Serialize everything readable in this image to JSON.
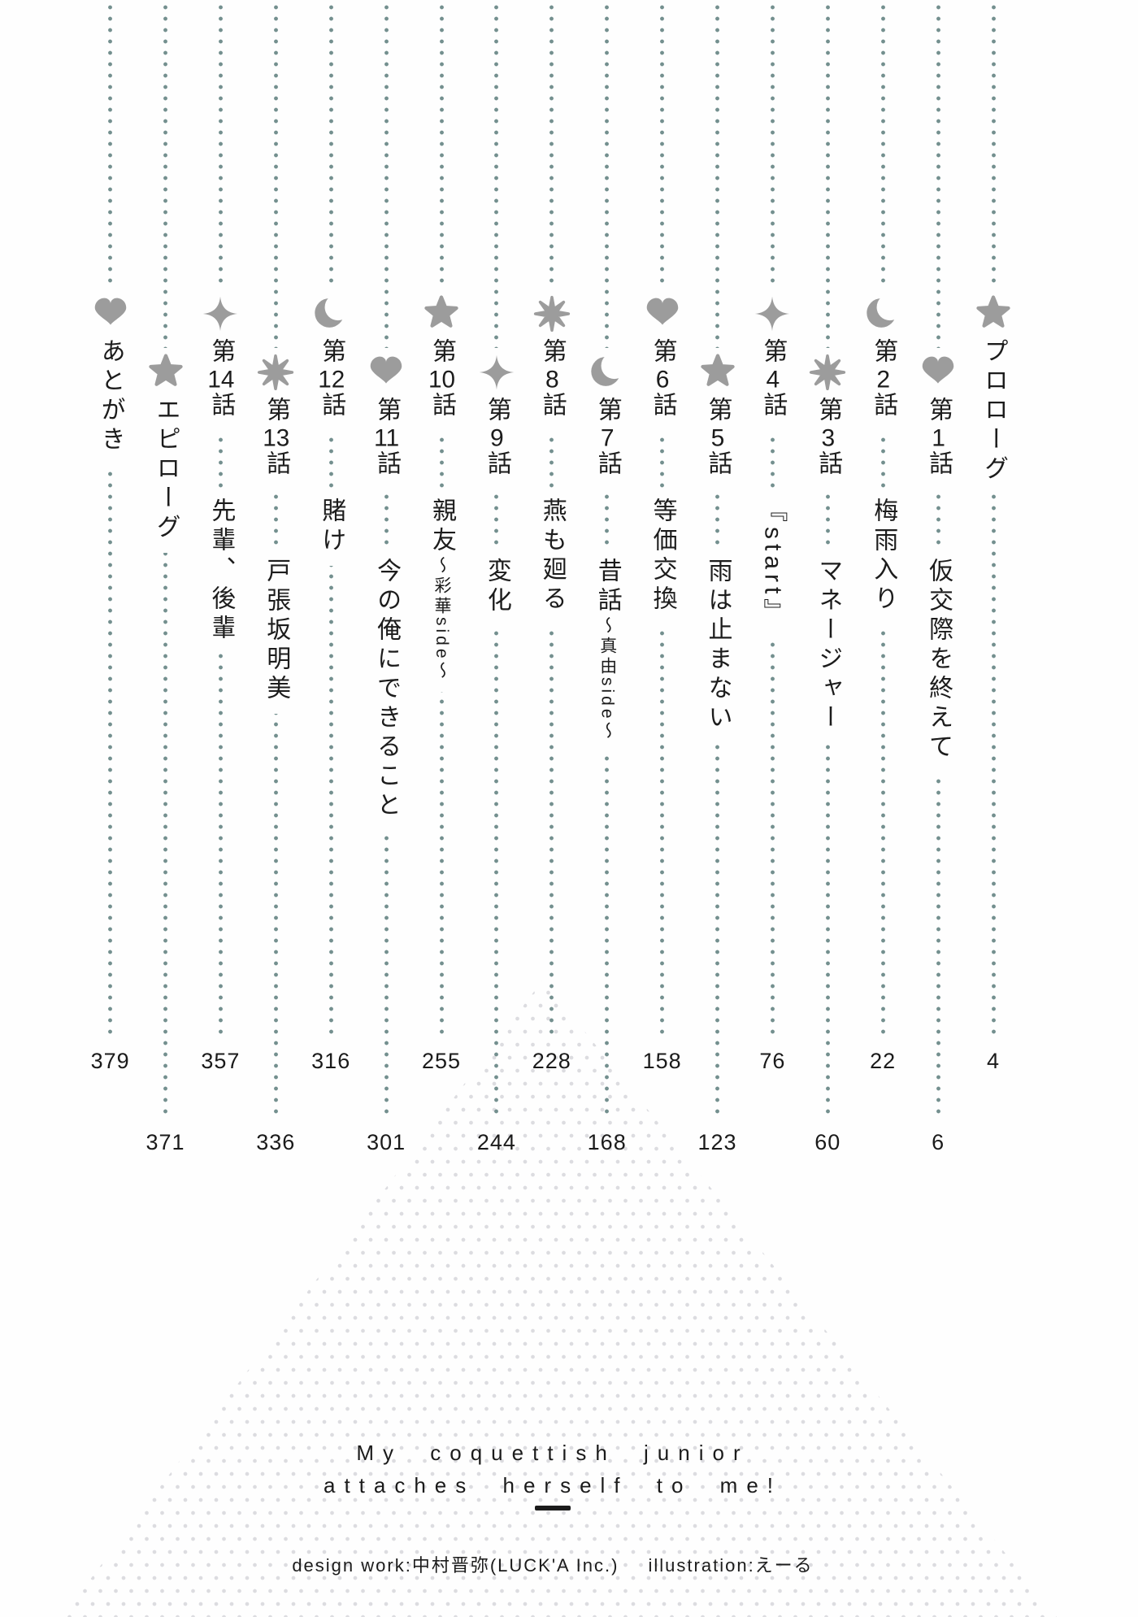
{
  "page": {
    "background_color": "#fefefe",
    "dot_line_color": "#74908f",
    "icon_color": "#9c9c9c",
    "text_color": "#1c1c1c",
    "triangle_dot_color": "#dcdce0"
  },
  "toc": {
    "items": [
      {
        "icon": "star",
        "label": "プロローグ",
        "title": "",
        "title_sub": "",
        "page": "4"
      },
      {
        "icon": "heart",
        "label": "第1話",
        "title": "仮交際を終えて",
        "title_sub": "",
        "page": "6"
      },
      {
        "icon": "moon",
        "label": "第2話",
        "title": "梅雨入り",
        "title_sub": "",
        "page": "22"
      },
      {
        "icon": "burst",
        "label": "第3話",
        "title": "マネージャー",
        "title_sub": "",
        "page": "60"
      },
      {
        "icon": "sparkle",
        "label": "第4話",
        "title": "『start』",
        "title_sub": "",
        "page": "76"
      },
      {
        "icon": "star",
        "label": "第5話",
        "title": "雨は止まない",
        "title_sub": "",
        "page": "123"
      },
      {
        "icon": "heart",
        "label": "第6話",
        "title": "等価交換",
        "title_sub": "",
        "page": "158"
      },
      {
        "icon": "moon",
        "label": "第7話",
        "title": "昔話",
        "title_sub": "〜真由side〜",
        "page": "168"
      },
      {
        "icon": "burst",
        "label": "第8話",
        "title": "燕も廻る",
        "title_sub": "",
        "page": "228"
      },
      {
        "icon": "sparkle",
        "label": "第9話",
        "title": "変化",
        "title_sub": "",
        "page": "244"
      },
      {
        "icon": "star",
        "label": "第10話",
        "title": "親友",
        "title_sub": "〜彩華side〜",
        "page": "255"
      },
      {
        "icon": "heart",
        "label": "第11話",
        "title": "今の俺にできること",
        "title_sub": "",
        "page": "301"
      },
      {
        "icon": "moon",
        "label": "第12話",
        "title": "賭け",
        "title_sub": "",
        "page": "316"
      },
      {
        "icon": "burst",
        "label": "第13話",
        "title": "戸張坂明美",
        "title_sub": "",
        "page": "336"
      },
      {
        "icon": "sparkle",
        "label": "第14話",
        "title": "先輩、後輩",
        "title_sub": "",
        "page": "357"
      },
      {
        "icon": "star",
        "label": "エピローグ",
        "title": "",
        "title_sub": "",
        "page": "371"
      },
      {
        "icon": "heart",
        "label": "あとがき",
        "title": "",
        "title_sub": "",
        "page": "379"
      }
    ]
  },
  "footer": {
    "series_title_line1": "My coquettish junior",
    "series_title_line2": "attaches herself to me!",
    "credit_design": "design work:中村晋弥(LUCK'A Inc.)",
    "credit_illustration": "illustration:えーる"
  }
}
